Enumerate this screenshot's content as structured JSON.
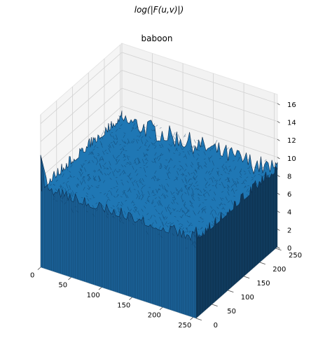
{
  "figure": {
    "suptitle": "log(|F(u,v)|)",
    "title": "baboon"
  },
  "chart_data": {
    "type": "surface",
    "title": "baboon",
    "suptitle": "log(|F(u,v)|)",
    "xlabel": "",
    "ylabel": "",
    "zlabel": "",
    "x_ticks": [
      "0",
      "50",
      "100",
      "150",
      "200",
      "250"
    ],
    "y_ticks": [
      "0",
      "50",
      "100",
      "150",
      "200",
      "250"
    ],
    "z_ticks": [
      "0",
      "2",
      "4",
      "6",
      "8",
      "10",
      "12",
      "14",
      "16"
    ],
    "xlim": [
      0,
      255
    ],
    "ylim": [
      0,
      255
    ],
    "zlim": [
      0,
      17
    ],
    "grid": true,
    "surface_color": "#1f77b4",
    "edge_color": "#0b2a4a",
    "pane_color": "#f2f2f2",
    "surface": {
      "description_values": {
        "typical_level": 8.5,
        "noise_range": [
          7.3,
          9.6
        ],
        "corner_peaks": [
          {
            "u": 0,
            "v": 0,
            "z": 12.5
          },
          {
            "u": 255,
            "v": 0,
            "z": 10.2
          },
          {
            "u": 0,
            "v": 255,
            "z": 9.5
          },
          {
            "u": 255,
            "v": 255,
            "z": 9.4
          }
        ]
      }
    }
  }
}
